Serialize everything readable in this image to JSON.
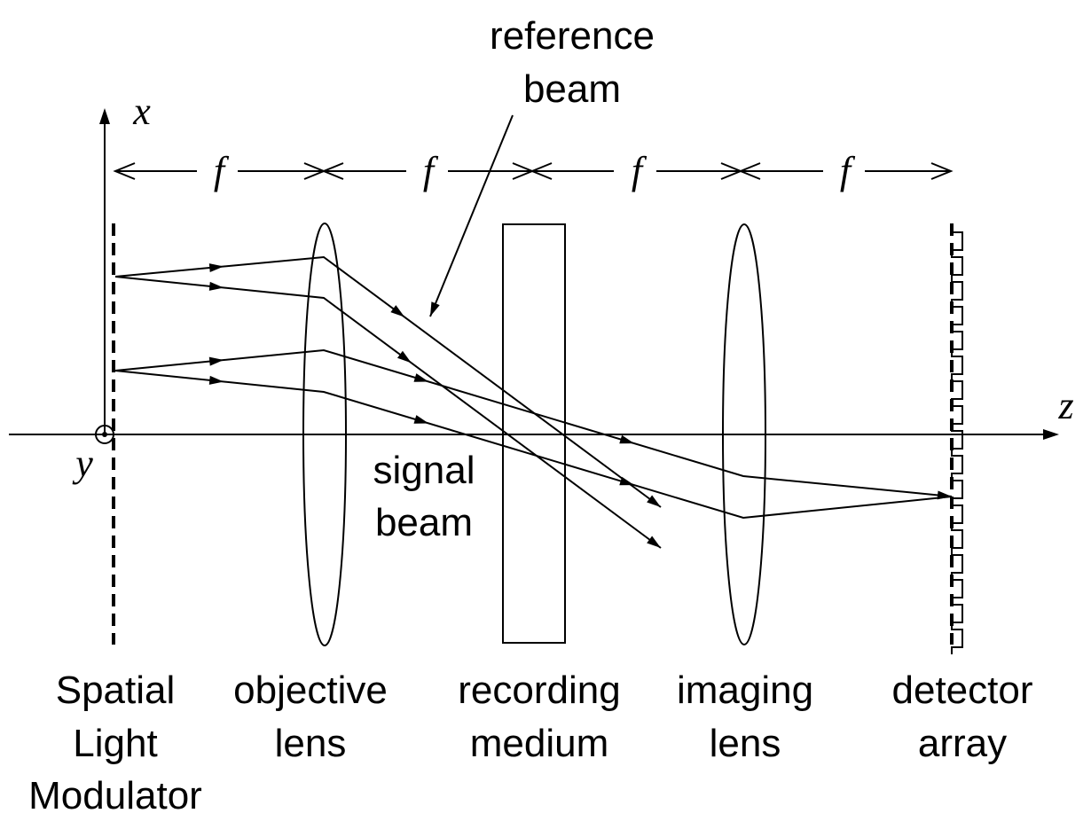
{
  "axes": {
    "x": "x",
    "y": "y",
    "z": "z"
  },
  "focal_lengths": [
    "f",
    "f",
    "f",
    "f"
  ],
  "beams": {
    "reference": [
      "reference",
      "beam"
    ],
    "signal": [
      "signal",
      "beam"
    ]
  },
  "components": [
    {
      "label": [
        "Spatial",
        "Light",
        "Modulator"
      ]
    },
    {
      "label": [
        "objective",
        "lens"
      ]
    },
    {
      "label": [
        "recording",
        "medium"
      ]
    },
    {
      "label": [
        "imaging",
        "lens"
      ]
    },
    {
      "label": [
        "detector",
        "array"
      ]
    }
  ]
}
